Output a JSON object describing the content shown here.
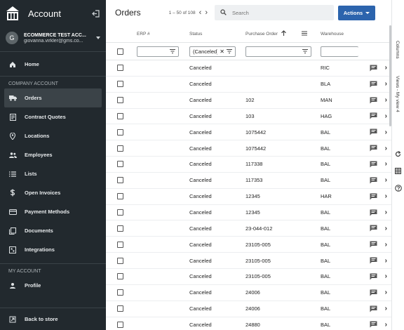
{
  "sidebar": {
    "title": "Account",
    "account_name": "ECOMMERCE TEST ACC...",
    "account_email": "giovanna.virkler@gms.co...",
    "avatar_initial": "G",
    "home": "Home",
    "section_company": "COMPANY ACCOUNT",
    "items": [
      {
        "label": "Orders",
        "icon": "truck-icon"
      },
      {
        "label": "Contract Quotes",
        "icon": "document-list-icon"
      },
      {
        "label": "Locations",
        "icon": "location-pin-icon"
      },
      {
        "label": "Employees",
        "icon": "people-icon"
      },
      {
        "label": "Lists",
        "icon": "list-icon"
      },
      {
        "label": "Open Invoices",
        "icon": "dollar-icon"
      },
      {
        "label": "Payment Methods",
        "icon": "credit-card-icon"
      },
      {
        "label": "Documents",
        "icon": "documents-icon"
      },
      {
        "label": "Integrations",
        "icon": "integrations-icon"
      }
    ],
    "section_my": "MY ACCOUNT",
    "profile": "Profile",
    "back_to_store": "Back to store"
  },
  "header": {
    "title": "Orders",
    "pager": "1 – 50 of 108",
    "search_placeholder": "Search",
    "actions_label": "Actions"
  },
  "columns": {
    "erp": "ERP #",
    "status": "Status",
    "po": "Purchase Order",
    "warehouse": "Warehouse"
  },
  "filters": {
    "status_value": "(Canceled)"
  },
  "rows": [
    {
      "erp": "",
      "status": "Canceled",
      "po": "",
      "warehouse": "RIC"
    },
    {
      "erp": "",
      "status": "Canceled",
      "po": "",
      "warehouse": "BLA"
    },
    {
      "erp": "",
      "status": "Canceled",
      "po": "102",
      "warehouse": "MAN"
    },
    {
      "erp": "",
      "status": "Canceled",
      "po": "103",
      "warehouse": "HAG"
    },
    {
      "erp": "",
      "status": "Canceled",
      "po": "1075442",
      "warehouse": "BAL"
    },
    {
      "erp": "",
      "status": "Canceled",
      "po": "1075442",
      "warehouse": "BAL"
    },
    {
      "erp": "",
      "status": "Canceled",
      "po": "117338",
      "warehouse": "BAL"
    },
    {
      "erp": "",
      "status": "Canceled",
      "po": "117353",
      "warehouse": "BAL"
    },
    {
      "erp": "",
      "status": "Canceled",
      "po": "12345",
      "warehouse": "HAR"
    },
    {
      "erp": "",
      "status": "Canceled",
      "po": "12345",
      "warehouse": "BAL"
    },
    {
      "erp": "",
      "status": "Canceled",
      "po": "23-044-012",
      "warehouse": "BAL"
    },
    {
      "erp": "",
      "status": "Canceled",
      "po": "23105-005",
      "warehouse": "BAL"
    },
    {
      "erp": "",
      "status": "Canceled",
      "po": "23105-005",
      "warehouse": "BAL"
    },
    {
      "erp": "",
      "status": "Canceled",
      "po": "23105-005",
      "warehouse": "BAL"
    },
    {
      "erp": "",
      "status": "Canceled",
      "po": "24006",
      "warehouse": "BAL"
    },
    {
      "erp": "",
      "status": "Canceled",
      "po": "24006",
      "warehouse": "BAL"
    },
    {
      "erp": "",
      "status": "Canceled",
      "po": "24880",
      "warehouse": "BAL"
    }
  ],
  "rail": {
    "columns_label": "Columns",
    "views_label": "Views - My view 4"
  },
  "colors": {
    "sidebar_bg": "#22292e",
    "accent": "#2c64ad"
  }
}
